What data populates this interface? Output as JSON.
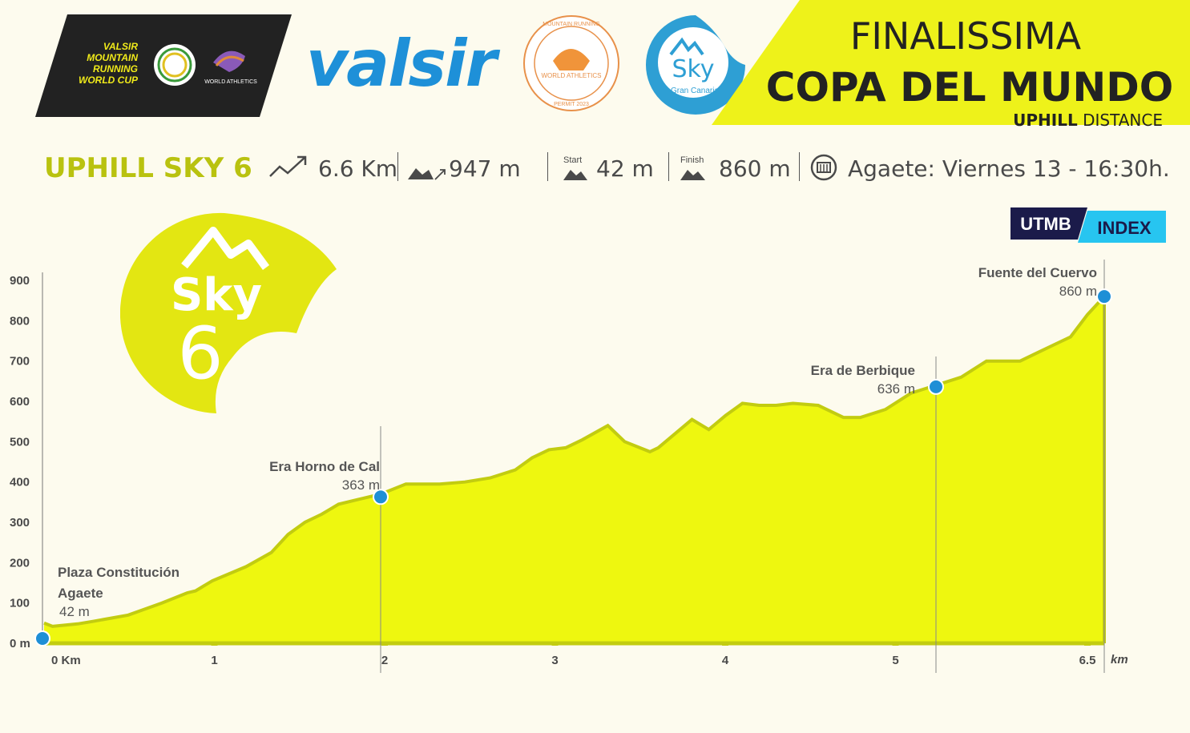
{
  "header": {
    "left_badge_lines": [
      "VALSIR",
      "MOUNTAIN",
      "RUNNING",
      "WORLD CUP"
    ],
    "left_badge_wa": "WORLD ATHLETICS",
    "sponsor": "valsir",
    "permit_text_top": "MOUNTAIN RUNNING",
    "permit_text_mid": "WORLD ATHLETICS",
    "permit_text_bottom": "PERMIT 2023",
    "sky_logo": "Sky",
    "sky_logo_sub": "Gran Canaria",
    "title_line1": "FINALISSIMA",
    "title_line2": "COPA DEL MUNDO",
    "title_line3_bold": "UPHILL",
    "title_line3": "DISTANCE",
    "banner_color": "#eef21a"
  },
  "race": {
    "name": "UPHILL SKY 6",
    "distance": "6.6 Km",
    "gain": "947 m",
    "start_label": "Start",
    "start_value": "42 m",
    "finish_label": "Finish",
    "finish_value": "860 m",
    "location": "Agaete: Viernes 13 - 16:30h."
  },
  "utmb": {
    "left": "UTMB",
    "right": "INDEX"
  },
  "badge": {
    "word": "Sky",
    "number": "6"
  },
  "chart_data": {
    "type": "area",
    "x_unit": "km",
    "x_ticks": [
      0,
      1,
      2,
      3,
      4,
      5,
      6.5
    ],
    "x_tick_labels": [
      "0 Km",
      "1",
      "2",
      "3",
      "4",
      "5",
      "6.5"
    ],
    "y_ticks": [
      0,
      100,
      200,
      300,
      400,
      500,
      600,
      700,
      800,
      900
    ],
    "y_tick_labels": [
      "0 m",
      "100",
      "200",
      "300",
      "400",
      "500",
      "600",
      "700",
      "800",
      "900"
    ],
    "xlim": [
      0,
      6.3
    ],
    "ylim": [
      0,
      920
    ],
    "fill_color": "#eef70f",
    "line_color": "#c2cc10",
    "x": [
      0,
      0.05,
      0.2,
      0.3,
      0.5,
      0.7,
      0.85,
      0.9,
      1.0,
      1.2,
      1.35,
      1.45,
      1.55,
      1.65,
      1.75,
      1.85,
      2.0,
      2.15,
      2.25,
      2.35,
      2.5,
      2.65,
      2.8,
      2.9,
      3.0,
      3.1,
      3.2,
      3.35,
      3.45,
      3.6,
      3.65,
      3.75,
      3.85,
      3.95,
      4.05,
      4.15,
      4.25,
      4.35,
      4.45,
      4.6,
      4.75,
      4.85,
      5.0,
      5.15,
      5.3,
      5.45,
      5.6,
      5.7,
      5.8,
      5.9,
      6.0,
      6.1,
      6.2,
      6.3
    ],
    "y": [
      50,
      42,
      48,
      55,
      70,
      100,
      125,
      130,
      155,
      190,
      225,
      270,
      300,
      320,
      345,
      355,
      370,
      395,
      395,
      395,
      400,
      410,
      430,
      460,
      480,
      485,
      505,
      540,
      500,
      475,
      485,
      520,
      555,
      530,
      565,
      595,
      590,
      590,
      595,
      590,
      560,
      560,
      580,
      620,
      640,
      660,
      700,
      700,
      700,
      720,
      740,
      760,
      815,
      860
    ],
    "waypoints": [
      {
        "name": "Plaza Constitución",
        "name2": "Agaete",
        "elev_label": "42 m",
        "km": 0,
        "ele": 42
      },
      {
        "name": "Era Horno de Cal",
        "name2": "",
        "elev_label": "363 m",
        "km": 2.0,
        "ele": 363
      },
      {
        "name": "Era de Berbique",
        "name2": "",
        "elev_label": "636 m",
        "km": 5.3,
        "ele": 636
      },
      {
        "name": "Fuente del Cuervo",
        "name2": "",
        "elev_label": "860 m",
        "km": 6.3,
        "ele": 860
      }
    ],
    "xlabel": "km",
    "ylabel": ""
  }
}
